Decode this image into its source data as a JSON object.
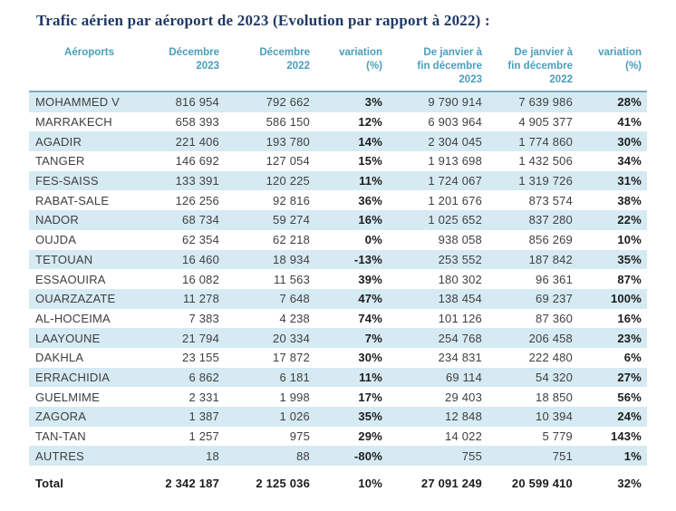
{
  "title": "Trafic aérien par aéroport de 2023 (Evolution par rapport à 2022) :",
  "colors": {
    "title_text": "#1F3864",
    "header_text": "#4A9EBC",
    "header_rule": "#7FA9BC",
    "row_alt_background": "#D6EAF3",
    "body_text": "#3F3F3F",
    "bold_text": "#1C1C1C"
  },
  "table": {
    "header_lines": [
      "Aéroports",
      "Décembre\n2023",
      "Décembre\n2022",
      "variation\n(%)",
      "De janvier à\nfin décembre\n2023",
      "De janvier à\nfin décembre\n2022",
      "variation\n(%)"
    ]
  },
  "chart_data": {
    "type": "table",
    "title": "Trafic aérien par aéroport de 2023 (Evolution par rapport à 2022) :",
    "columns": [
      "Aéroports",
      "Décembre 2023",
      "Décembre 2022",
      "variation (%)",
      "De janvier à fin décembre 2023",
      "De janvier à fin décembre 2022",
      "variation (%)"
    ],
    "rows": [
      [
        "MOHAMMED V",
        "816 954",
        "792 662",
        "3%",
        "9 790 914",
        "7 639 986",
        "28%"
      ],
      [
        "MARRAKECH",
        "658 393",
        "586 150",
        "12%",
        "6 903 964",
        "4 905 377",
        "41%"
      ],
      [
        "AGADIR",
        "221 406",
        "193 780",
        "14%",
        "2 304 045",
        "1 774 860",
        "30%"
      ],
      [
        "TANGER",
        "146 692",
        "127 054",
        "15%",
        "1 913 698",
        "1 432 506",
        "34%"
      ],
      [
        "FES-SAISS",
        "133 391",
        "120 225",
        "11%",
        "1 724 067",
        "1 319 726",
        "31%"
      ],
      [
        "RABAT-SALE",
        "126 256",
        "92 816",
        "36%",
        "1 201 676",
        "873 574",
        "38%"
      ],
      [
        "NADOR",
        "68 734",
        "59 274",
        "16%",
        "1 025 652",
        "837 280",
        "22%"
      ],
      [
        "OUJDA",
        "62 354",
        "62 218",
        "0%",
        "938 058",
        "856 269",
        "10%"
      ],
      [
        "TETOUAN",
        "16 460",
        "18 934",
        "-13%",
        "253 552",
        "187 842",
        "35%"
      ],
      [
        "ESSAOUIRA",
        "16 082",
        "11 563",
        "39%",
        "180 302",
        "96 361",
        "87%"
      ],
      [
        "OUARZAZATE",
        "11 278",
        "7 648",
        "47%",
        "138 454",
        "69 237",
        "100%"
      ],
      [
        "AL-HOCEIMA",
        "7 383",
        "4 238",
        "74%",
        "101 126",
        "87 360",
        "16%"
      ],
      [
        "LAAYOUNE",
        "21 794",
        "20 334",
        "7%",
        "254 768",
        "206 458",
        "23%"
      ],
      [
        "DAKHLA",
        "23 155",
        "17 872",
        "30%",
        "234 831",
        "222 480",
        "6%"
      ],
      [
        "ERRACHIDIA",
        "6 862",
        "6 181",
        "11%",
        "69 114",
        "54 320",
        "27%"
      ],
      [
        "GUELMIME",
        "2 331",
        "1 998",
        "17%",
        "29 403",
        "18 850",
        "56%"
      ],
      [
        "ZAGORA",
        "1 387",
        "1 026",
        "35%",
        "12 848",
        "10 394",
        "24%"
      ],
      [
        "TAN-TAN",
        "1 257",
        "975",
        "29%",
        "14 022",
        "5 779",
        "143%"
      ],
      [
        "AUTRES",
        "18",
        "88",
        "-80%",
        "755",
        "751",
        "1%"
      ]
    ],
    "total_row": [
      "Total",
      "2 342 187",
      "2 125 036",
      "10%",
      "27 091 249",
      "20 599 410",
      "32%"
    ]
  }
}
